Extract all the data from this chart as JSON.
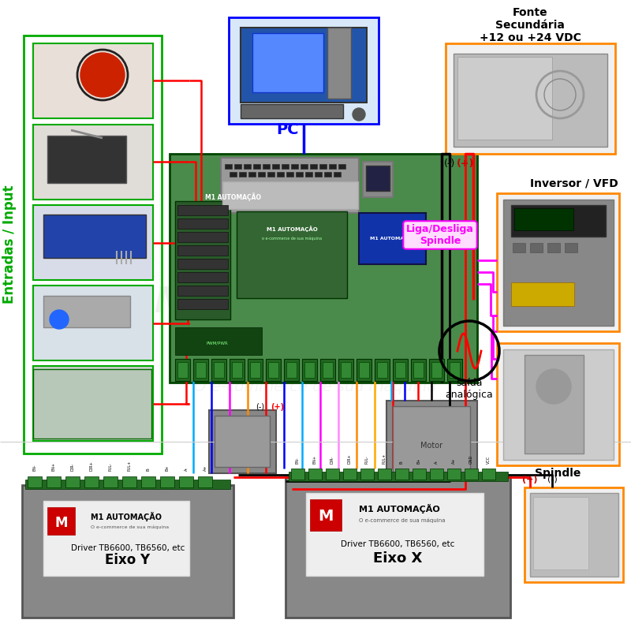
{
  "bg_color": "#ffffff",
  "watermark1": "M1 AUTOMAÇÃO",
  "watermark2": "O e-commerce de sua máquina",
  "left_label": "Entradas / Input",
  "left_label_color": "#00aa00",
  "pc_label": "PC",
  "pc_label_color": "#0000ff",
  "fonte_title": "Fonte\nSecundária\n+12 ou +24 VDC",
  "inversor_title": "Inversor / VFD",
  "spindle_title": "Spindle",
  "driver_y_title": "Driver TB6600, TB6560, etc",
  "driver_y_label": "Eixo Y",
  "driver_x_title": "Driver TB6600, TB6560, etc",
  "driver_x_label": "Eixo X",
  "analog_label": "saída\nanalógica",
  "liga_label": "Liga/Desliga\nSpindle",
  "liga_label_color": "#ff00ff",
  "minus_top": "(-)",
  "plus_top": "(+)",
  "minus_bot": "(-)",
  "plus_bot": "(+)"
}
